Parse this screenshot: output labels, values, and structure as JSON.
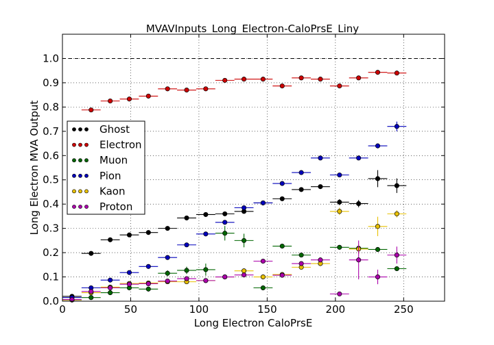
{
  "chart_data": {
    "type": "scatter",
    "title": "MVAVInputs_Long_Electron-CaloPrsE_Liny",
    "xlabel": "Long Electron CaloPrsE",
    "ylabel": "Long Electron MVA Output",
    "xlim": [
      0,
      280
    ],
    "ylim": [
      0,
      1.1
    ],
    "xticks": [
      "0",
      "50",
      "100",
      "150",
      "200",
      "250"
    ],
    "yticks": [
      "0.0",
      "0.1",
      "0.2",
      "0.3",
      "0.4",
      "0.5",
      "0.6",
      "0.7",
      "0.8",
      "0.9",
      "1.0"
    ],
    "grid": true,
    "reference_line_y": 1.0,
    "legend_position": "center-left",
    "x": [
      7,
      21,
      35,
      49,
      63,
      77,
      91,
      105,
      119,
      133,
      147,
      161,
      175,
      189,
      203,
      217,
      231,
      245
    ],
    "series": [
      {
        "name": "Ghost",
        "color": "#000000",
        "values": [
          0.02,
          0.197,
          0.253,
          0.273,
          0.283,
          0.3,
          0.343,
          0.357,
          0.36,
          0.37,
          0.405,
          0.422,
          0.46,
          0.472,
          0.408,
          0.402,
          0.505,
          0.476
        ],
        "errors": [
          0.004,
          0.004,
          0.004,
          0.004,
          0.004,
          0.004,
          0.004,
          0.004,
          0.004,
          0.005,
          0.006,
          0.006,
          0.007,
          0.008,
          0.012,
          0.015,
          0.035,
          0.03
        ]
      },
      {
        "name": "Electron",
        "color": "#cc0000",
        "values": [
          null,
          0.788,
          0.825,
          0.833,
          0.845,
          0.875,
          0.87,
          0.875,
          0.91,
          0.915,
          0.915,
          0.887,
          0.92,
          0.915,
          0.887,
          0.92,
          0.943,
          0.94
        ],
        "errors": [
          null,
          0.004,
          0.004,
          0.004,
          0.004,
          0.004,
          0.004,
          0.004,
          0.004,
          0.004,
          0.004,
          0.004,
          0.004,
          0.006,
          0.005,
          0.004,
          0.004,
          0.004
        ]
      },
      {
        "name": "Muon",
        "color": "#006600",
        "values": [
          0.005,
          0.015,
          0.035,
          0.055,
          0.05,
          0.115,
          0.127,
          0.13,
          0.28,
          0.25,
          0.055,
          0.227,
          0.19,
          null,
          0.222,
          0.218,
          0.213,
          0.134
        ],
        "errors": [
          0.004,
          0.006,
          0.008,
          0.01,
          0.01,
          0.012,
          0.015,
          0.025,
          0.03,
          0.028,
          0.01,
          0.005,
          0.005,
          null,
          0.005,
          0.005,
          0.005,
          0.005
        ]
      },
      {
        "name": "Pion",
        "color": "#0000bb",
        "values": [
          0.015,
          0.055,
          0.087,
          0.118,
          0.143,
          0.18,
          0.232,
          0.277,
          0.325,
          0.385,
          0.405,
          0.485,
          0.53,
          0.59,
          0.52,
          0.59,
          0.64,
          0.72
        ],
        "errors": [
          0.004,
          0.004,
          0.004,
          0.004,
          0.004,
          0.004,
          0.004,
          0.004,
          0.004,
          0.006,
          0.005,
          0.005,
          0.006,
          0.006,
          0.008,
          0.008,
          0.01,
          0.02
        ]
      },
      {
        "name": "Kaon",
        "color": "#e8c000",
        "values": [
          0.005,
          0.035,
          0.058,
          0.073,
          0.075,
          0.08,
          0.08,
          0.085,
          0.1,
          0.125,
          0.1,
          0.11,
          0.14,
          0.155,
          0.37,
          0.215,
          0.308,
          0.36
        ],
        "errors": [
          0.004,
          0.004,
          0.004,
          0.004,
          0.004,
          0.004,
          0.004,
          0.004,
          0.004,
          0.006,
          0.005,
          0.005,
          0.006,
          0.006,
          0.015,
          0.02,
          0.04,
          0.015
        ]
      },
      {
        "name": "Proton",
        "color": "#aa00aa",
        "values": [
          0.007,
          0.04,
          0.055,
          0.07,
          0.072,
          0.083,
          0.093,
          0.085,
          0.1,
          0.108,
          0.165,
          0.107,
          0.155,
          0.17,
          0.03,
          0.17,
          0.1,
          0.19
        ],
        "errors": [
          0.004,
          0.004,
          0.004,
          0.004,
          0.004,
          0.004,
          0.004,
          0.004,
          0.004,
          0.006,
          0.007,
          0.006,
          0.008,
          0.01,
          0.004,
          0.08,
          0.03,
          0.035
        ]
      }
    ],
    "bin_half_width": 7
  }
}
